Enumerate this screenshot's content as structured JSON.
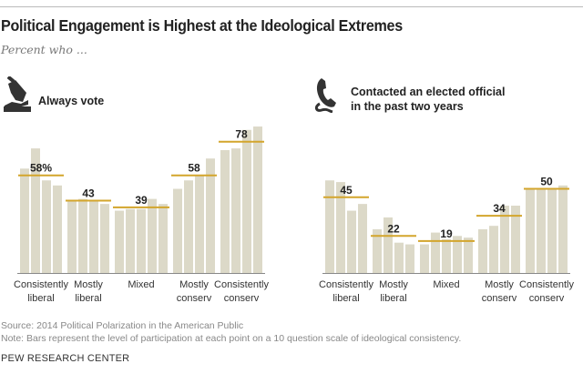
{
  "title": "Political Engagement is Highest at the Ideological Extremes",
  "subtitle": "Percent who ...",
  "colors": {
    "bar": "#dcd9c8",
    "average_line": "#d3a52c",
    "axis": "#888888"
  },
  "chart_data": [
    {
      "type": "bar",
      "title": "Always vote",
      "icon": "ballot-vote-icon",
      "ylim": [
        0,
        100
      ],
      "value_suffix_first": "%",
      "groups": [
        {
          "label": [
            "Consistently",
            "liberal"
          ],
          "average": 58,
          "values": [
            62,
            74,
            55,
            52
          ]
        },
        {
          "label": [
            "Mostly",
            "liberal"
          ],
          "average": 43,
          "values": [
            43,
            44,
            43,
            41
          ]
        },
        {
          "label": [
            "Mixed"
          ],
          "average": 39,
          "values": [
            37,
            38,
            38,
            44,
            41
          ]
        },
        {
          "label": [
            "Mostly",
            "conserv"
          ],
          "average": 58,
          "values": [
            50,
            55,
            58,
            68
          ]
        },
        {
          "label": [
            "Consistently",
            "conserv"
          ],
          "average": 78,
          "values": [
            73,
            74,
            85,
            87
          ]
        }
      ]
    },
    {
      "type": "bar",
      "title": "Contacted an elected official in the past two years",
      "title_lines": [
        "Contacted an elected official",
        "in the past two years"
      ],
      "icon": "telephone-icon",
      "ylim": [
        0,
        100
      ],
      "groups": [
        {
          "label": [
            "Consistently",
            "liberal"
          ],
          "average": 45,
          "values": [
            55,
            54,
            37,
            41
          ]
        },
        {
          "label": [
            "Mostly",
            "liberal"
          ],
          "average": 22,
          "values": [
            26,
            33,
            18,
            17
          ]
        },
        {
          "label": [
            "Mixed"
          ],
          "average": 19,
          "values": [
            17,
            24,
            20,
            22,
            21
          ]
        },
        {
          "label": [
            "Mostly",
            "conserv"
          ],
          "average": 34,
          "values": [
            26,
            28,
            40,
            40
          ]
        },
        {
          "label": [
            "Consistently",
            "conserv"
          ],
          "average": 50,
          "values": [
            50,
            50,
            50,
            52
          ]
        }
      ]
    }
  ],
  "footer": {
    "source": "Source: 2014 Political Polarization in the American Public",
    "note": "Note: Bars represent the level of participation at each point on a 10 question scale of ideological consistency.",
    "org": "PEW RESEARCH CENTER"
  }
}
